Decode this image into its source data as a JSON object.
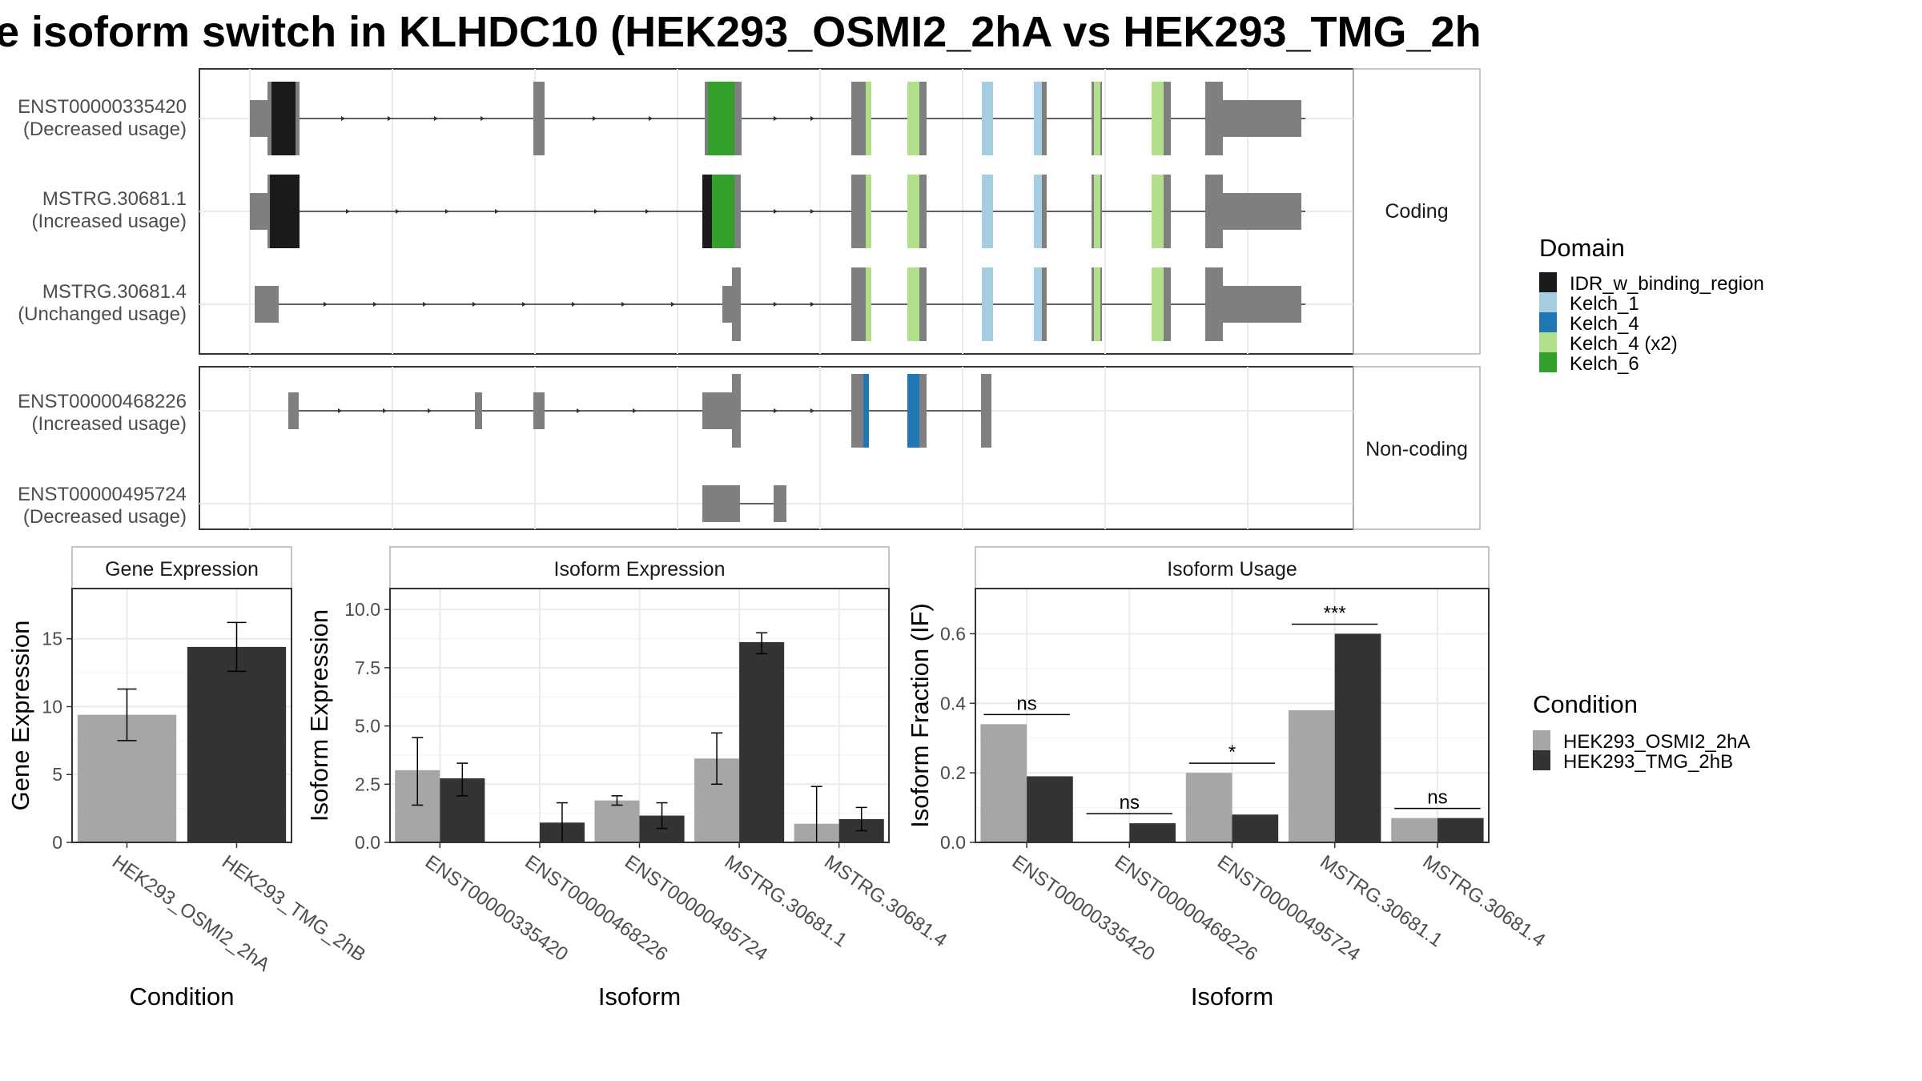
{
  "title": "e isoform switch in KLHDC10 (HEK293_OSMI2_2hA vs HEK293_TMG_2h",
  "colors": {
    "exon": "#7f7f7f",
    "IDR_w_binding_region": "#1a1a1a",
    "Kelch_1": "#a6cee3",
    "Kelch_4": "#1f78b4",
    "Kelch_4_x2": "#b2df8a",
    "Kelch_6": "#33a02c",
    "cond_a": "#a6a6a6",
    "cond_b": "#333333"
  },
  "structure": {
    "panels": [
      {
        "strip": "Coding",
        "rows": [
          {
            "name": "ENST00000335420",
            "usage": "(Decreased usage)"
          },
          {
            "name": "MSTRG.30681.1",
            "usage": "(Increased usage)"
          },
          {
            "name": "MSTRG.30681.4",
            "usage": "(Unchanged usage)"
          }
        ]
      },
      {
        "strip": "Non-coding",
        "rows": [
          {
            "name": "ENST00000468226",
            "usage": "(Increased usage)"
          },
          {
            "name": "ENST00000495724",
            "usage": "(Decreased usage)"
          }
        ]
      }
    ],
    "domain_legend": {
      "title": "Domain",
      "items": [
        {
          "label": "IDR_w_binding_region",
          "color": "#1a1a1a"
        },
        {
          "label": "Kelch_1",
          "color": "#a6cee3"
        },
        {
          "label": "Kelch_4",
          "color": "#1f78b4"
        },
        {
          "label": "Kelch_4 (x2)",
          "color": "#b2df8a"
        },
        {
          "label": "Kelch_6",
          "color": "#33a02c"
        }
      ]
    }
  },
  "condition_legend": {
    "title": "Condition",
    "items": [
      {
        "label": "HEK293_OSMI2_2hA",
        "color": "#a6a6a6"
      },
      {
        "label": "HEK293_TMG_2hB",
        "color": "#333333"
      }
    ]
  },
  "chart_data": [
    {
      "type": "bar",
      "title": "Gene Expression",
      "xlabel": "Condition",
      "ylabel": "Gene Expression",
      "ylim": [
        0,
        18.7
      ],
      "yticks": [
        0,
        5,
        10,
        15
      ],
      "ytick_labels": [
        "0",
        "5",
        "10",
        "15"
      ],
      "grid": true,
      "categories": [
        "HEK293_OSMI2_2hA",
        "HEK293_TMG_2hB"
      ],
      "values": [
        9.4,
        14.4
      ],
      "error": [
        [
          7.5,
          11.3
        ],
        [
          12.6,
          16.2
        ]
      ]
    },
    {
      "type": "bar",
      "title": "Isoform Expression",
      "xlabel": "Isoform",
      "ylabel": "Isoform Expression",
      "ylim": [
        0,
        10.9
      ],
      "yticks": [
        0,
        2.5,
        5,
        7.5,
        10
      ],
      "ytick_labels": [
        "0.0",
        "2.5",
        "5.0",
        "7.5",
        "10.0"
      ],
      "grid": true,
      "categories": [
        "ENST00000335420",
        "ENST00000468226",
        "ENST00000495724",
        "MSTRG.30681.1",
        "MSTRG.30681.4"
      ],
      "series": [
        {
          "name": "HEK293_OSMI2_2hA",
          "values": [
            3.1,
            0.0,
            1.8,
            3.6,
            0.8
          ],
          "error": [
            [
              1.6,
              4.5
            ],
            [
              0.0,
              0.0
            ],
            [
              1.6,
              2.0
            ],
            [
              2.5,
              4.7
            ],
            [
              0.0,
              2.4
            ]
          ]
        },
        {
          "name": "HEK293_TMG_2hB",
          "values": [
            2.75,
            0.85,
            1.15,
            8.6,
            1.0
          ],
          "error": [
            [
              2.0,
              3.4
            ],
            [
              0.0,
              1.7
            ],
            [
              0.6,
              1.7
            ],
            [
              8.1,
              9.0
            ],
            [
              0.5,
              1.5
            ]
          ]
        }
      ]
    },
    {
      "type": "bar",
      "title": "Isoform Usage",
      "xlabel": "Isoform",
      "ylabel": "Isoform Fraction (IF)",
      "ylim": [
        0,
        0.73
      ],
      "yticks": [
        0,
        0.2,
        0.4,
        0.6
      ],
      "ytick_labels": [
        "0.0",
        "0.2",
        "0.4",
        "0.6"
      ],
      "grid": true,
      "categories": [
        "ENST00000335420",
        "ENST00000468226",
        "ENST00000495724",
        "MSTRG.30681.1",
        "MSTRG.30681.4"
      ],
      "series": [
        {
          "name": "HEK293_OSMI2_2hA",
          "values": [
            0.34,
            0.0,
            0.2,
            0.38,
            0.07
          ]
        },
        {
          "name": "HEK293_TMG_2hB",
          "values": [
            0.19,
            0.055,
            0.08,
            0.6,
            0.07
          ]
        }
      ],
      "annotations": [
        "ns",
        "ns",
        "*",
        "***",
        "ns"
      ]
    }
  ]
}
